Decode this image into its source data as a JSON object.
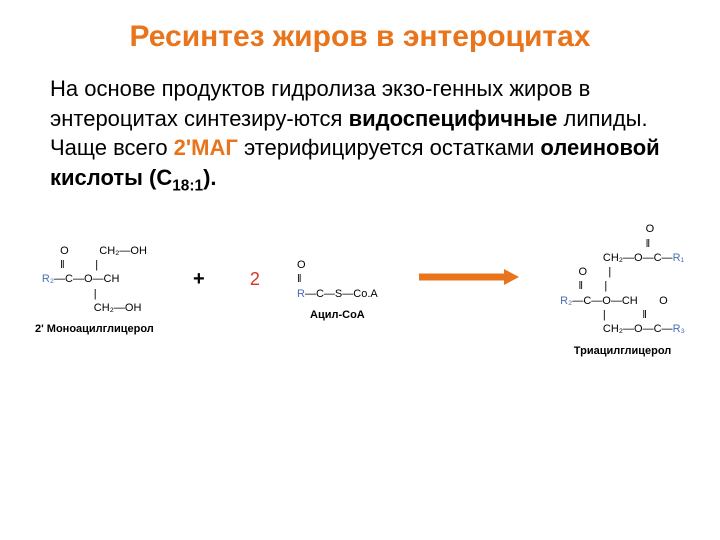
{
  "title": "Ресинтез жиров в энтероцитах",
  "title_color": "#e8741c",
  "paragraph": {
    "parts": [
      {
        "text": "На основе продуктов гидролиза экзо-генных жиров в энтероцитах синтезиру-ются ",
        "bold": false,
        "color": "#000"
      },
      {
        "text": "видоспецифичные",
        "bold": true,
        "color": "#000"
      },
      {
        "text": " липиды. Чаще всего ",
        "bold": false,
        "color": "#000"
      },
      {
        "text": "2'МАГ",
        "bold": true,
        "color": "#e8741c"
      },
      {
        "text": " этерифицируется остатками ",
        "bold": false,
        "color": "#000"
      },
      {
        "text": "олеиновой кислоты (С",
        "bold": true,
        "color": "#000"
      },
      {
        "text": "18:1",
        "bold": true,
        "color": "#000",
        "sub": true
      },
      {
        "text": ").",
        "bold": true,
        "color": "#000"
      }
    ]
  },
  "reaction": {
    "mol1": {
      "label": "2' Моноацилглицерол",
      "r_color": "#4a6db5",
      "lines": [
        "      O          CH₂—OH",
        "      ‖          |",
        "R₂—C—O—CH",
        "                 |",
        "                 CH₂—OH"
      ]
    },
    "plus": "+",
    "coef": {
      "text": "2",
      "color": "#d4352a"
    },
    "mol2": {
      "label": "Ацил-СоА",
      "r_color": "#4a6db5",
      "lines": [
        "O",
        "‖",
        "R—C—S—Co.A"
      ]
    },
    "arrow": {
      "color": "#e8741c",
      "width": 90,
      "head": 14
    },
    "mol3": {
      "label": "Триацилглицерол",
      "r_color": "#4a6db5",
      "lines": [
        "                            O",
        "                            ‖",
        "              CH₂—O—C—R₁",
        "      O       |",
        "      ‖       |",
        "R₂—C—O—CH       O",
        "              |            ‖",
        "              CH₂—O—C—R₃"
      ]
    }
  },
  "colors": {
    "orange": "#e8741c",
    "blue": "#4a6db5",
    "red": "#d4352a"
  }
}
